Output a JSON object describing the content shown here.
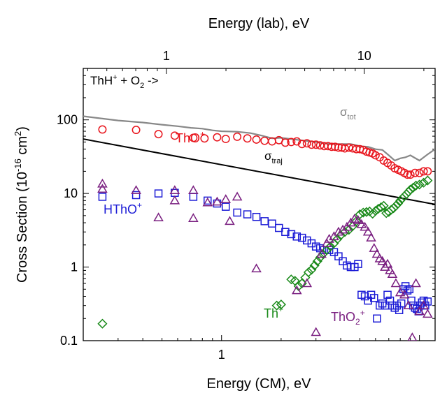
{
  "chart_data": {
    "type": "scatter",
    "x_scale": "log",
    "y_scale": "log",
    "xlim": [
      0.2,
      12
    ],
    "ylim": [
      0.1,
      500
    ],
    "xlabel": "Energy (CM), eV",
    "ylabel_parts": {
      "pre": "Cross Section (10",
      "sup1": "-16",
      "mid": " cm",
      "sup2": "2",
      "post": ")"
    },
    "top_xlabel": "Energy (lab), eV",
    "top_axis_factor": 1.9,
    "bottom_ticks": [
      {
        "v": 1,
        "label": "1"
      }
    ],
    "top_ticks": [
      {
        "v": 1,
        "label": "1"
      },
      {
        "v": 10,
        "label": "10"
      }
    ],
    "y_ticks": [
      {
        "v": 0.1,
        "label": "0.1"
      },
      {
        "v": 1,
        "label": "1"
      },
      {
        "v": 10,
        "label": "10"
      },
      {
        "v": 100,
        "label": "100"
      }
    ],
    "reaction_label": {
      "pre": "ThH",
      "sup1": "+",
      "mid": " + O",
      "sub": "2",
      "post": " ->"
    },
    "annotations": {
      "tot": {
        "base": "σ",
        "sub": "tot",
        "color": "#808080"
      },
      "traj": {
        "base": "σ",
        "sub": "traj",
        "color": "#000000"
      },
      "ThO": {
        "base": "ThO",
        "sup": "+",
        "color": "#e8141c"
      },
      "HThO": {
        "base": "HThO",
        "sup": "+",
        "color": "#1c1cd6"
      },
      "Th": {
        "base": "Th",
        "sup": "+",
        "color": "#1a8a1a"
      },
      "ThO2": {
        "base": "ThO",
        "sub": "2",
        "sup": "+",
        "color": "#7a1f80"
      }
    },
    "series": [
      {
        "key": "tot",
        "kind": "line",
        "color": "#888888",
        "x": [
          0.2,
          0.3,
          0.4,
          0.5,
          0.6,
          0.7,
          0.8,
          0.9,
          1.0,
          1.2,
          1.4,
          1.6,
          1.8,
          2.0,
          2.5,
          3.0,
          3.5,
          4.0,
          4.5,
          5.0,
          5.5,
          6.0,
          6.5,
          7.0,
          7.5,
          8.0,
          8.5,
          9.0,
          10.0,
          11.0,
          12.0
        ],
        "y": [
          112,
          98,
          92,
          86,
          82,
          78,
          76,
          72,
          70,
          69,
          66,
          61,
          56,
          57,
          53,
          50,
          47,
          47,
          47,
          44,
          43,
          40,
          39,
          33,
          28,
          30,
          31,
          33,
          28,
          34,
          40
        ]
      },
      {
        "key": "traj",
        "kind": "line",
        "color": "#000000",
        "x": [
          0.2,
          12
        ],
        "y": [
          55,
          7.1
        ]
      },
      {
        "key": "ThO",
        "kind": "circle",
        "color": "#e8141c",
        "x": [
          0.25,
          0.37,
          0.48,
          0.58,
          0.72,
          0.82,
          0.95,
          1.05,
          1.2,
          1.35,
          1.5,
          1.65,
          1.8,
          1.95,
          2.1,
          2.25,
          2.4,
          2.55,
          2.7,
          2.85,
          3.0,
          3.15,
          3.3,
          3.45,
          3.6,
          3.75,
          3.9,
          4.05,
          4.2,
          4.4,
          4.6,
          4.8,
          5.0,
          5.2,
          5.4,
          5.6,
          5.8,
          6.0,
          6.3,
          6.6,
          6.9,
          7.2,
          7.5,
          7.8,
          8.1,
          8.4,
          8.7,
          9.0,
          9.5,
          10.0,
          10.5,
          11.0
        ],
        "y": [
          74,
          73,
          64,
          61,
          57,
          56,
          58,
          55,
          59,
          56,
          54,
          52,
          51,
          53,
          49,
          50,
          51,
          47,
          48,
          46,
          46,
          45,
          44,
          44,
          43,
          43,
          42,
          42,
          41,
          42,
          41,
          40,
          40,
          39,
          37,
          36,
          35,
          33,
          31,
          28,
          26,
          24,
          22,
          21,
          20,
          19,
          18,
          18,
          19,
          19,
          20,
          20
        ]
      },
      {
        "key": "HThO",
        "kind": "square",
        "color": "#1c1cd6",
        "x": [
          0.25,
          0.37,
          0.48,
          0.58,
          0.72,
          0.85,
          0.95,
          1.05,
          1.2,
          1.35,
          1.5,
          1.65,
          1.8,
          1.95,
          2.1,
          2.25,
          2.4,
          2.55,
          2.7,
          2.85,
          3.0,
          3.15,
          3.3,
          3.5,
          3.7,
          3.9,
          4.1,
          4.3,
          4.5,
          4.7,
          4.9,
          5.1,
          5.3,
          5.5,
          5.7,
          5.9,
          6.1,
          6.3,
          6.5,
          6.7,
          6.9,
          7.1,
          7.3,
          7.5,
          7.7,
          7.9,
          8.1,
          8.3,
          8.5,
          8.7,
          8.9,
          9.1,
          9.3,
          9.5,
          9.7,
          9.9,
          10.1,
          10.3,
          10.5,
          10.7,
          11.0
        ],
        "y": [
          9.0,
          9.5,
          10.0,
          10.2,
          9.0,
          8.0,
          7.3,
          6.6,
          5.5,
          5.2,
          4.8,
          4.2,
          3.9,
          3.4,
          3.0,
          2.8,
          2.6,
          2.5,
          2.3,
          2.1,
          1.9,
          1.8,
          1.7,
          1.7,
          1.6,
          1.4,
          1.2,
          1.05,
          1.0,
          1.0,
          1.1,
          0.42,
          0.4,
          0.35,
          0.42,
          0.38,
          0.2,
          0.3,
          0.32,
          0.3,
          0.42,
          0.35,
          0.3,
          0.28,
          0.3,
          0.26,
          0.32,
          0.5,
          0.55,
          0.48,
          0.5,
          0.35,
          0.3,
          0.28,
          0.27,
          0.25,
          0.3,
          0.33,
          0.35,
          0.3,
          0.34
        ]
      },
      {
        "key": "Th",
        "kind": "diamond",
        "color": "#1a8a1a",
        "x": [
          0.25,
          1.9,
          2.0,
          2.25,
          2.35,
          2.45,
          2.55,
          2.65,
          2.75,
          2.85,
          2.95,
          3.05,
          3.15,
          3.25,
          3.4,
          3.55,
          3.7,
          3.85,
          4.0,
          4.2,
          4.4,
          4.6,
          4.8,
          5.0,
          5.2,
          5.4,
          5.6,
          5.8,
          6.0,
          6.2,
          6.4,
          6.6,
          6.8,
          7.0,
          7.2,
          7.4,
          7.6,
          7.8,
          8.0,
          8.2,
          8.4,
          8.6,
          8.8,
          9.0,
          9.3,
          9.6,
          10.0,
          10.5,
          11.0
        ],
        "y": [
          0.17,
          0.3,
          0.31,
          0.68,
          0.65,
          0.55,
          0.6,
          0.72,
          0.85,
          0.92,
          1.05,
          1.2,
          1.35,
          1.5,
          1.7,
          1.9,
          2.1,
          2.4,
          2.7,
          3.0,
          3.2,
          3.6,
          4.2,
          5.2,
          5.5,
          5.6,
          5.7,
          5.3,
          5.8,
          6.2,
          6.5,
          6.8,
          5.4,
          5.6,
          6.0,
          6.3,
          6.8,
          7.3,
          8.0,
          8.6,
          9.2,
          9.8,
          10.5,
          11.3,
          12.0,
          12.8,
          13.2,
          14.0,
          15.0
        ]
      },
      {
        "key": "ThO2",
        "kind": "triangle",
        "color": "#7a1f80",
        "x": [
          0.25,
          0.25,
          0.37,
          0.48,
          0.58,
          0.58,
          0.72,
          0.72,
          0.85,
          0.95,
          1.05,
          1.1,
          1.2,
          1.5,
          2.4,
          2.7,
          3.0,
          3.2,
          3.4,
          3.5,
          3.7,
          3.9,
          4.1,
          4.3,
          4.5,
          4.7,
          4.9,
          5.1,
          5.3,
          5.5,
          5.7,
          5.9,
          6.1,
          6.3,
          6.5,
          6.7,
          6.9,
          7.1,
          7.3,
          7.6,
          8.0,
          8.4,
          8.8,
          9.2,
          9.6,
          10.0,
          10.5,
          11.0
        ],
        "y": [
          13.5,
          11.5,
          11.0,
          4.7,
          11.0,
          8.0,
          4.6,
          11.0,
          7.5,
          7.7,
          8.3,
          4.2,
          9.0,
          0.95,
          0.48,
          0.6,
          0.13,
          1.5,
          2.1,
          2.4,
          2.6,
          3.0,
          3.2,
          3.5,
          4.0,
          4.5,
          4.3,
          3.8,
          3.5,
          3.0,
          2.5,
          1.8,
          1.5,
          1.3,
          1.2,
          1.0,
          1.1,
          0.9,
          0.8,
          0.6,
          0.45,
          0.42,
          0.3,
          0.11,
          0.6,
          0.25,
          0.3,
          0.23
        ]
      }
    ]
  }
}
